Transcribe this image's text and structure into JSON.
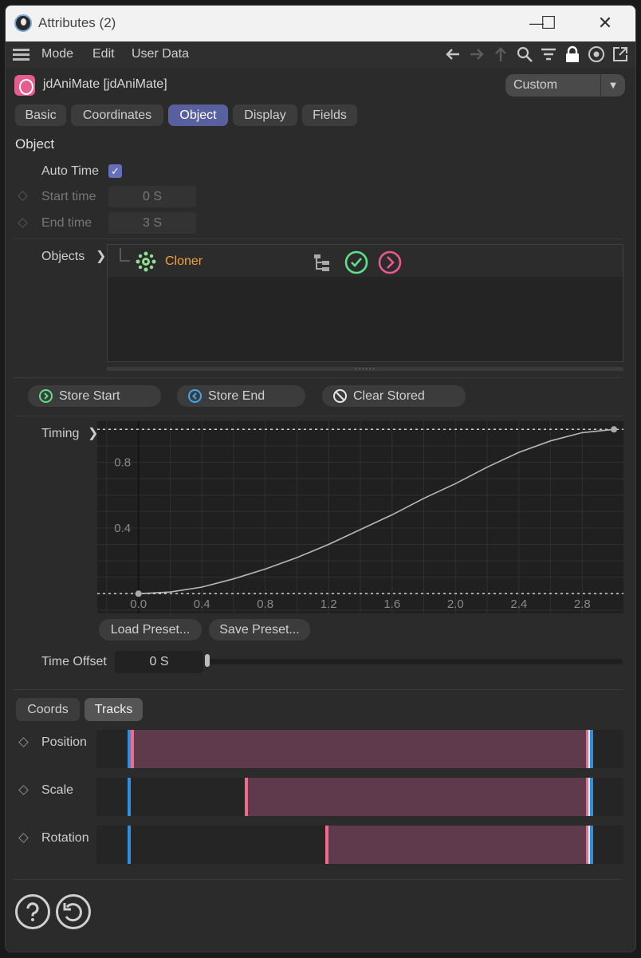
{
  "window": {
    "title": "Attributes (2)",
    "minimize": "—",
    "maximize": "☐",
    "close": "✕"
  },
  "menu": {
    "items": [
      "Mode",
      "Edit",
      "User Data"
    ]
  },
  "toolbar_icons": [
    "back-arrow-icon",
    "forward-arrow-icon",
    "up-arrow-icon",
    "search-icon",
    "filter-icon",
    "lock-icon",
    "target-icon",
    "new-window-icon"
  ],
  "object": {
    "name": "jdAniMate [jdAniMate]",
    "layout": "Custom"
  },
  "tabs": [
    {
      "label": "Basic",
      "active": false
    },
    {
      "label": "Coordinates",
      "active": false
    },
    {
      "label": "Object",
      "active": true
    },
    {
      "label": "Display",
      "active": false
    },
    {
      "label": "Fields",
      "active": false
    }
  ],
  "section": {
    "title": "Object"
  },
  "auto_time": {
    "label": "Auto Time",
    "checked": true
  },
  "start_time": {
    "label": "Start time",
    "value": "0 S"
  },
  "end_time": {
    "label": "End time",
    "value": "3 S"
  },
  "objects": {
    "label": "Objects",
    "items": [
      {
        "name": "Cloner"
      }
    ]
  },
  "buttons": {
    "store_start": "Store Start",
    "store_end": "Store End",
    "clear_stored": "Clear Stored"
  },
  "timing": {
    "label": "Timing",
    "load_preset": "Load Preset...",
    "save_preset": "Save Preset..."
  },
  "chart_data": {
    "type": "line",
    "x_ticks": [
      "0.0",
      "0.4",
      "0.8",
      "1.2",
      "1.6",
      "2.0",
      "2.4",
      "2.8"
    ],
    "y_ticks": [
      "0.4",
      "0.8"
    ],
    "xlim": [
      -0.26,
      3.06
    ],
    "ylim": [
      -0.12,
      1.05
    ],
    "series": [
      {
        "x": [
          0.0,
          0.2,
          0.4,
          0.6,
          0.8,
          1.0,
          1.2,
          1.4,
          1.6,
          1.8,
          2.0,
          2.2,
          2.4,
          2.6,
          2.8,
          3.0
        ],
        "y": [
          0.0,
          0.01,
          0.04,
          0.09,
          0.15,
          0.22,
          0.3,
          0.39,
          0.48,
          0.58,
          0.67,
          0.77,
          0.86,
          0.93,
          0.98,
          1.0
        ]
      }
    ]
  },
  "time_offset": {
    "label": "Time Offset",
    "value": "0 S",
    "slider": 0
  },
  "lower_tabs": [
    {
      "label": "Coords",
      "active": false
    },
    {
      "label": "Tracks",
      "active": true
    }
  ],
  "tracks": [
    {
      "label": "Position",
      "start": 0.0,
      "end": 1.0
    },
    {
      "label": "Scale",
      "start": 0.25,
      "end": 1.0
    },
    {
      "label": "Rotation",
      "start": 0.43,
      "end": 1.0
    }
  ],
  "footer_icons": [
    "help-icon",
    "reset-icon"
  ]
}
